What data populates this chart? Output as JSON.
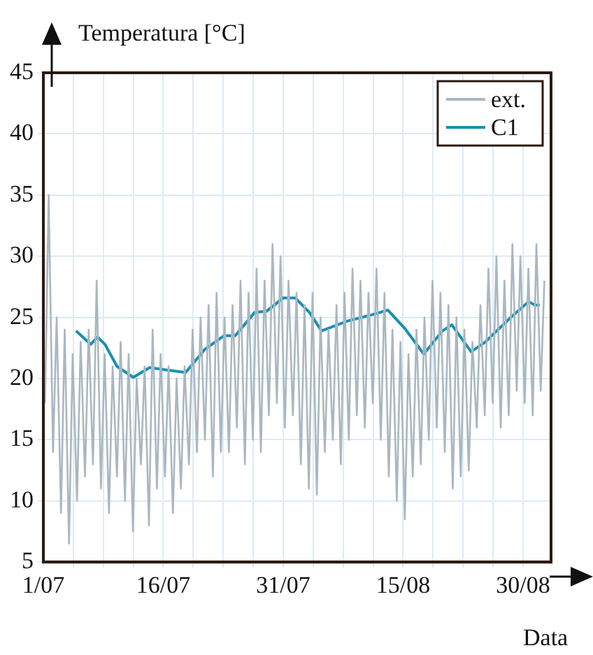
{
  "chart_data": {
    "type": "line",
    "xlabel": "Data",
    "ylabel": "Temperatura [°C]",
    "xlim": [
      "--07-01",
      "--09-02T12:00"
    ],
    "ylim": [
      5,
      45
    ],
    "xticks": [
      {
        "value": "--07-01",
        "label": "1/07"
      },
      {
        "value": "--07-04T18:00",
        "label": null
      },
      {
        "value": "--07-08T12:00",
        "label": null
      },
      {
        "value": "--07-12T06:00",
        "label": null
      },
      {
        "value": "--07-16",
        "label": "16/07"
      },
      {
        "value": "--07-19T18:00",
        "label": null
      },
      {
        "value": "--07-23T12:00",
        "label": null
      },
      {
        "value": "--07-27T06:00",
        "label": null
      },
      {
        "value": "--07-31",
        "label": "31/07"
      },
      {
        "value": "--08-03T18:00",
        "label": null
      },
      {
        "value": "--08-07T12:00",
        "label": null
      },
      {
        "value": "--08-11T06:00",
        "label": null
      },
      {
        "value": "--08-15",
        "label": "15/08"
      },
      {
        "value": "--08-18T18:00",
        "label": null
      },
      {
        "value": "--08-22T12:00",
        "label": null
      },
      {
        "value": "--08-26T06:00",
        "label": null
      },
      {
        "value": "--08-30",
        "label": "30/08"
      }
    ],
    "yticks": [
      5,
      10,
      15,
      20,
      25,
      30,
      35,
      40,
      45
    ],
    "grid": true,
    "legend": "top right",
    "marker": "none",
    "line_style": "solid",
    "series": [
      {
        "name": "ext.",
        "color": "#aab7c0",
        "x": [
          "--07-01T05:00",
          "--07-01T16:00",
          "--07-02T05:00",
          "--07-02T16:00",
          "--07-03T05:00",
          "--07-03T16:00",
          "--07-04T05:00",
          "--07-04T16:00",
          "--07-05T05:00",
          "--07-05T16:00",
          "--07-06T05:00",
          "--07-06T16:00",
          "--07-07T05:00",
          "--07-07T16:00",
          "--07-08T05:00",
          "--07-08T16:00",
          "--07-09T05:00",
          "--07-09T16:00",
          "--07-10T05:00",
          "--07-10T16:00",
          "--07-11T05:00",
          "--07-11T16:00",
          "--07-12T05:00",
          "--07-12T16:00",
          "--07-13T05:00",
          "--07-13T16:00",
          "--07-14T05:00",
          "--07-14T16:00",
          "--07-15T05:00",
          "--07-15T16:00",
          "--07-16T05:00",
          "--07-16T16:00",
          "--07-17T05:00",
          "--07-17T16:00",
          "--07-18T05:00",
          "--07-18T16:00",
          "--07-19T05:00",
          "--07-19T16:00",
          "--07-20T05:00",
          "--07-20T16:00",
          "--07-21T05:00",
          "--07-21T16:00",
          "--07-22T05:00",
          "--07-22T16:00",
          "--07-23T05:00",
          "--07-23T16:00",
          "--07-24T05:00",
          "--07-24T16:00",
          "--07-25T05:00",
          "--07-25T16:00",
          "--07-26T05:00",
          "--07-26T16:00",
          "--07-27T05:00",
          "--07-27T16:00",
          "--07-28T05:00",
          "--07-28T16:00",
          "--07-29T05:00",
          "--07-29T16:00",
          "--07-30T05:00",
          "--07-30T16:00",
          "--07-31T05:00",
          "--07-31T16:00",
          "--08-01T05:00",
          "--08-01T16:00",
          "--08-02T05:00",
          "--08-02T16:00",
          "--08-03T05:00",
          "--08-03T16:00",
          "--08-04T05:00",
          "--08-04T16:00",
          "--08-05T05:00",
          "--08-05T16:00",
          "--08-06T05:00",
          "--08-06T16:00",
          "--08-07T05:00",
          "--08-07T16:00",
          "--08-08T05:00",
          "--08-08T16:00",
          "--08-09T05:00",
          "--08-09T16:00",
          "--08-10T05:00",
          "--08-10T16:00",
          "--08-11T05:00",
          "--08-11T16:00",
          "--08-12T05:00",
          "--08-12T16:00",
          "--08-13T05:00",
          "--08-13T16:00",
          "--08-14T05:00",
          "--08-14T16:00",
          "--08-15T05:00",
          "--08-15T16:00",
          "--08-16T05:00",
          "--08-16T16:00",
          "--08-17T05:00",
          "--08-17T16:00",
          "--08-18T05:00",
          "--08-18T16:00",
          "--08-19T05:00",
          "--08-19T16:00",
          "--08-20T05:00",
          "--08-20T16:00",
          "--08-21T05:00",
          "--08-21T16:00",
          "--08-22T05:00",
          "--08-22T16:00",
          "--08-23T05:00",
          "--08-23T16:00",
          "--08-24T05:00",
          "--08-24T16:00",
          "--08-25T05:00",
          "--08-25T16:00",
          "--08-26T05:00",
          "--08-26T16:00",
          "--08-27T05:00",
          "--08-27T16:00",
          "--08-28T05:00",
          "--08-28T16:00",
          "--08-29T05:00",
          "--08-29T16:00",
          "--08-30T05:00",
          "--08-30T16:00",
          "--08-31T05:00",
          "--08-31T16:00",
          "--09-01T05:00",
          "--09-01T16:00"
        ],
        "values": [
          18,
          35,
          14,
          25,
          9,
          24,
          6.5,
          22,
          10,
          23,
          12,
          24,
          13,
          28,
          11,
          22,
          9,
          21,
          12,
          23,
          10,
          22,
          7.5,
          20,
          13,
          21,
          8,
          24,
          11,
          22,
          12,
          21,
          9,
          20,
          11,
          21,
          13,
          24,
          14,
          25,
          15,
          26,
          12,
          27,
          14,
          25,
          14,
          26,
          16,
          28,
          13,
          27,
          15,
          29,
          14,
          28,
          17,
          31,
          18,
          30,
          16,
          28,
          17,
          27,
          13,
          26,
          11,
          27,
          10.5,
          25,
          14,
          24,
          15,
          26,
          13,
          27,
          15,
          29,
          17,
          28,
          16,
          27,
          18,
          29,
          15,
          27,
          12,
          24,
          10,
          23,
          8.5,
          22,
          12,
          24,
          13,
          25,
          15,
          28,
          16,
          27,
          14,
          26,
          11,
          25,
          12,
          24,
          12.5,
          23,
          16,
          26,
          17,
          29,
          18,
          30,
          16,
          28,
          17,
          31,
          19,
          30,
          18,
          29,
          17,
          31,
          19,
          28
        ]
      },
      {
        "name": "C1",
        "color": "#1a8fb0",
        "x": [
          "--07-05T02:00",
          "--07-06T22:00",
          "--07-07T19:00",
          "--07-08T17:00",
          "--07-10T05:00",
          "--07-12T06:00",
          "--07-14T07:00",
          "--07-16T10:00",
          "--07-18T19:00",
          "--07-21T05:00",
          "--07-23T14:00",
          "--07-25T00:00",
          "--07-27T10:00",
          "--07-28T22:00",
          "--07-31T00:00",
          "--08-01T12:00",
          "--08-03T07:00",
          "--08-04T19:00",
          "--08-08T00:00",
          "--08-11T00:00",
          "--08-13T02:00",
          "--08-15T05:00",
          "--08-17T14:00",
          "--08-19T22:00",
          "--08-21T02:00",
          "--08-23T12:00",
          "--08-25T07:00",
          "--08-28T07:00",
          "--08-30T17:00",
          "--08-31T12:00",
          "--09-01T02:00"
        ],
        "values": [
          23.9,
          22.8,
          23.4,
          22.8,
          21,
          20.1,
          20.9,
          20.7,
          20.5,
          22.4,
          23.5,
          23.5,
          25.4,
          25.5,
          26.6,
          26.6,
          25.4,
          23.9,
          24.7,
          25.2,
          25.6,
          24.1,
          22,
          23.9,
          24.4,
          22.2,
          23,
          24.9,
          26.3,
          26,
          26
        ]
      }
    ]
  }
}
